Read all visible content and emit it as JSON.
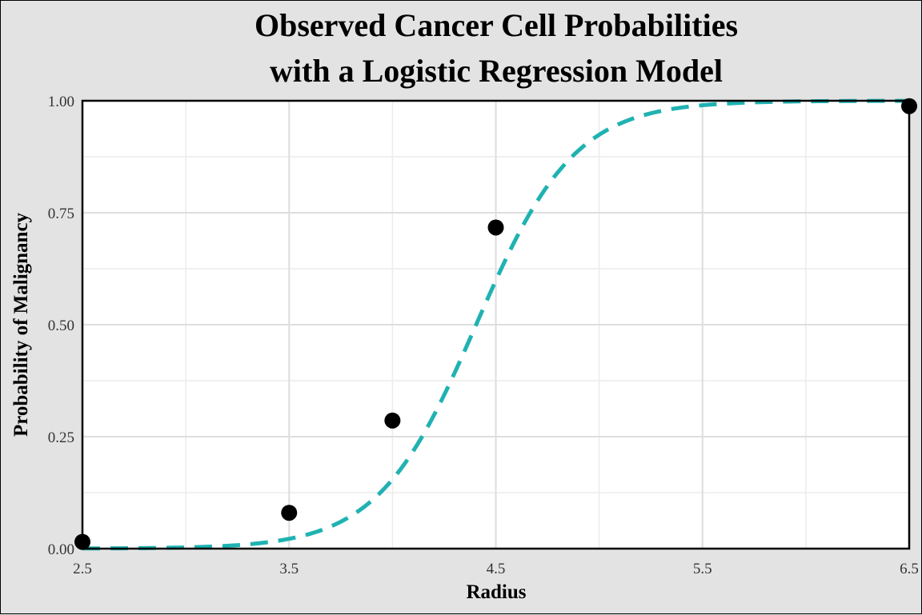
{
  "chart_data": {
    "type": "scatter",
    "title_lines": [
      "Observed Cancer Cell Probabilities",
      "with a Logistic Regression Model"
    ],
    "xlabel": "Radius",
    "ylabel": "Probability of Malignancy",
    "xlim": [
      2.5,
      6.5
    ],
    "ylim": [
      0,
      1
    ],
    "x_ticks": [
      2.5,
      3.5,
      4.5,
      5.5,
      6.5
    ],
    "x_tick_labels": [
      "2.5",
      "3.5",
      "4.5",
      "5.5",
      "6.5"
    ],
    "x_minor_ticks": [
      3.0,
      4.0,
      5.0,
      6.0
    ],
    "y_ticks": [
      0,
      0.25,
      0.5,
      0.75,
      1.0
    ],
    "y_tick_labels": [
      "0.00",
      "0.25",
      "0.50",
      "0.75",
      "1.00"
    ],
    "y_minor_ticks": [
      0.125,
      0.375,
      0.625,
      0.875
    ],
    "grid": true,
    "series": [
      {
        "kind": "points",
        "x": [
          2.5,
          3.5,
          4.0,
          4.5,
          6.5
        ],
        "y": [
          0.015,
          0.08,
          0.286,
          0.717,
          0.988
        ],
        "color": "#000000"
      },
      {
        "kind": "logistic_curve",
        "intercept": -18.5,
        "slope": 4.2,
        "x_range": [
          2.5,
          6.5
        ],
        "color": "#20b2b2",
        "dashed": true
      }
    ]
  }
}
